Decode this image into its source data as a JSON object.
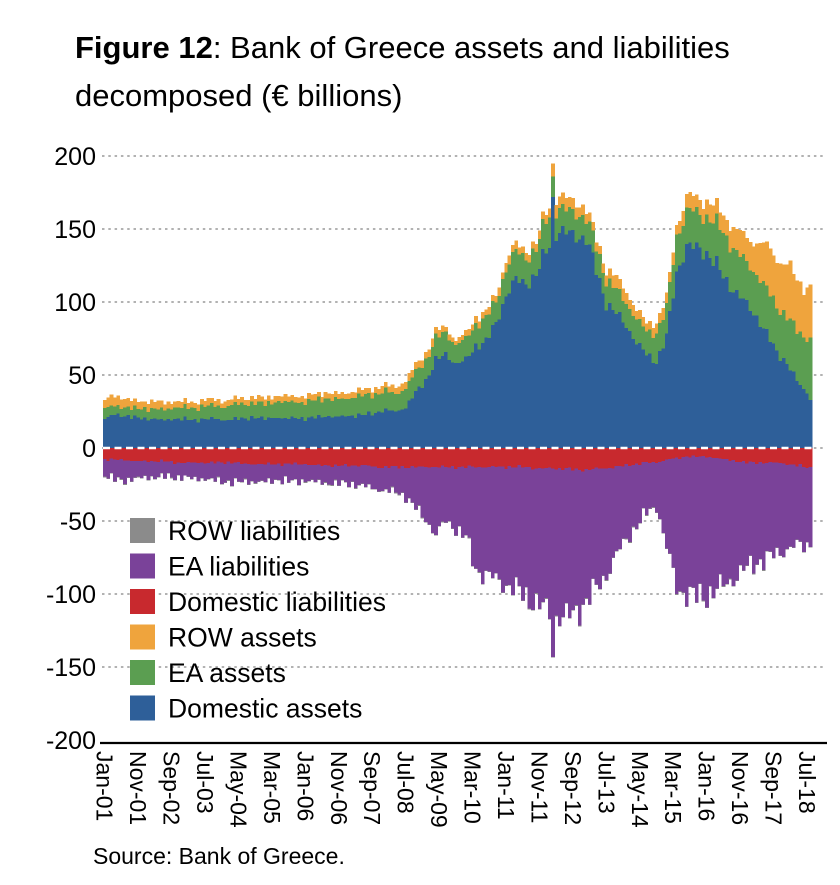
{
  "figure": {
    "title_bold": "Figure 12",
    "title_rest": ": Bank of Greece assets and liabilities decomposed (€ billions)",
    "source": "Source: Bank of Greece."
  },
  "chart_data": {
    "type": "bar",
    "stacked": true,
    "title": "Bank of Greece assets and liabilities decomposed (€ billions)",
    "unit": "€ billions",
    "ylim": [
      -200,
      200
    ],
    "yticks": [
      200,
      150,
      100,
      50,
      0,
      -50,
      -100,
      -150,
      -200
    ],
    "grid": "dotted",
    "zero_line": "white-dashed",
    "legend_position": "inside-lower-left",
    "x_start_label": "Jan-01",
    "x_end_label": "Aug-18",
    "months_total": 212,
    "xticks": [
      {
        "label": "Jan-01",
        "month": 0
      },
      {
        "label": "Nov-01",
        "month": 10
      },
      {
        "label": "Sep-02",
        "month": 20
      },
      {
        "label": "Jul-03",
        "month": 30
      },
      {
        "label": "May-04",
        "month": 40
      },
      {
        "label": "Mar-05",
        "month": 50
      },
      {
        "label": "Jan-06",
        "month": 60
      },
      {
        "label": "Nov-06",
        "month": 70
      },
      {
        "label": "Sep-07",
        "month": 80
      },
      {
        "label": "Jul-08",
        "month": 90
      },
      {
        "label": "May-09",
        "month": 100
      },
      {
        "label": "Mar-10",
        "month": 110
      },
      {
        "label": "Jan-11",
        "month": 120
      },
      {
        "label": "Nov-11",
        "month": 130
      },
      {
        "label": "Sep-12",
        "month": 140
      },
      {
        "label": "Jul-13",
        "month": 150
      },
      {
        "label": "May-14",
        "month": 160
      },
      {
        "label": "Mar-15",
        "month": 170
      },
      {
        "label": "Jan-16",
        "month": 180
      },
      {
        "label": "Nov-16",
        "month": 190
      },
      {
        "label": "Sep-17",
        "month": 200
      },
      {
        "label": "Jul-18",
        "month": 210
      }
    ],
    "quarterly_dates": [
      "Jan-01",
      "Apr-01",
      "Jul-01",
      "Oct-01",
      "Jan-02",
      "Apr-02",
      "Jul-02",
      "Oct-02",
      "Jan-03",
      "Apr-03",
      "Jul-03",
      "Oct-03",
      "Jan-04",
      "Apr-04",
      "Jul-04",
      "Oct-04",
      "Jan-05",
      "Apr-05",
      "Jul-05",
      "Oct-05",
      "Jan-06",
      "Apr-06",
      "Jul-06",
      "Oct-06",
      "Jan-07",
      "Apr-07",
      "Jul-07",
      "Oct-07",
      "Jan-08",
      "Apr-08",
      "Jul-08",
      "Oct-08",
      "Jan-09",
      "Apr-09",
      "Jul-09",
      "Oct-09",
      "Jan-10",
      "Apr-10",
      "Jul-10",
      "Oct-10",
      "Jan-11",
      "Apr-11",
      "Jul-11",
      "Oct-11",
      "Jan-12",
      "Apr-12",
      "Jul-12",
      "Oct-12",
      "Jan-13",
      "Apr-13",
      "Jul-13",
      "Oct-13",
      "Jan-14",
      "Apr-14",
      "Jul-14",
      "Oct-14",
      "Jan-15",
      "Apr-15",
      "Jul-15",
      "Oct-15",
      "Jan-16",
      "Apr-16",
      "Jul-16",
      "Oct-16",
      "Jan-17",
      "Apr-17",
      "Jul-17",
      "Oct-17",
      "Jan-18",
      "Apr-18",
      "Jul-18",
      "Oct-18"
    ],
    "series": [
      {
        "name": "Domestic assets",
        "color": "#2e5f99",
        "quarterly_values": [
          20,
          23,
          22,
          21,
          20,
          20,
          19,
          20,
          20,
          19,
          20,
          20,
          19,
          20,
          20,
          21,
          20,
          21,
          20,
          21,
          20,
          21,
          22,
          21,
          22,
          22,
          23,
          24,
          26,
          25,
          28,
          38,
          46,
          60,
          64,
          58,
          60,
          70,
          73,
          85,
          105,
          115,
          113,
          118,
          135,
          148,
          147,
          146,
          143,
          122,
          99,
          92,
          84,
          72,
          64,
          59,
          76,
          120,
          138,
          137,
          134,
          125,
          114,
          106,
          98,
          90,
          78,
          66,
          58,
          46,
          38,
          26
        ]
      },
      {
        "name": "EA assets",
        "color": "#5b9e51",
        "quarterly_values": [
          7,
          6,
          6,
          6,
          7,
          7,
          7,
          8,
          8,
          8,
          9,
          9,
          9,
          10,
          10,
          10,
          10,
          11,
          11,
          11,
          11,
          12,
          12,
          12,
          12,
          13,
          13,
          13,
          13,
          12,
          13,
          14,
          14,
          15,
          15,
          13,
          14,
          15,
          16,
          15,
          18,
          19,
          18,
          17,
          22,
          16,
          15,
          16,
          14,
          16,
          16,
          16,
          16,
          16,
          16,
          20,
          19,
          25,
          24,
          24,
          25,
          28,
          30,
          28,
          28,
          30,
          30,
          32,
          32,
          34,
          38,
          46
        ]
      },
      {
        "name": "ROW assets",
        "color": "#efa43d",
        "quarterly_values": [
          6,
          7,
          6,
          5,
          5,
          5,
          5,
          4,
          4,
          4,
          4,
          4,
          4,
          4,
          4,
          4,
          4,
          4,
          4,
          4,
          4,
          4,
          4,
          4,
          4,
          4,
          4,
          4,
          4,
          5,
          5,
          5,
          5,
          5,
          4,
          3,
          4,
          5,
          4,
          5,
          6,
          5,
          5,
          5,
          6,
          8,
          8,
          8,
          6,
          6,
          7,
          8,
          8,
          6,
          6,
          7,
          7,
          8,
          10,
          10,
          11,
          11,
          13,
          15,
          17,
          22,
          29,
          33,
          35,
          35,
          35,
          34
        ]
      },
      {
        "name": "Domestic liabilities",
        "color": "#c8292e",
        "quarterly_values": [
          -8,
          -8,
          -8,
          -9,
          -9,
          -9,
          -9,
          -10,
          -10,
          -10,
          -10,
          -10,
          -10,
          -10,
          -11,
          -11,
          -11,
          -11,
          -11,
          -11,
          -11,
          -12,
          -12,
          -12,
          -12,
          -12,
          -12,
          -13,
          -13,
          -13,
          -13,
          -13,
          -13,
          -13,
          -13,
          -13,
          -13,
          -13,
          -13,
          -13,
          -13,
          -13,
          -13,
          -14,
          -14,
          -14,
          -14,
          -15,
          -15,
          -14,
          -14,
          -13,
          -12,
          -11,
          -10,
          -10,
          -8,
          -7,
          -6,
          -6,
          -6,
          -7,
          -8,
          -9,
          -10,
          -10,
          -10,
          -10,
          -11,
          -12,
          -13,
          -15
        ]
      },
      {
        "name": "EA liabilities",
        "color": "#7a4299",
        "quarterly_values": [
          -11,
          -13,
          -14,
          -12,
          -11,
          -11,
          -10,
          -10,
          -10,
          -11,
          -11,
          -12,
          -13,
          -13,
          -12,
          -12,
          -12,
          -11,
          -11,
          -12,
          -11,
          -11,
          -12,
          -12,
          -12,
          -13,
          -14,
          -15,
          -16,
          -17,
          -20,
          -28,
          -36,
          -46,
          -37,
          -42,
          -48,
          -70,
          -74,
          -77,
          -80,
          -84,
          -88,
          -92,
          -97,
          -101,
          -102,
          -97,
          -90,
          -82,
          -72,
          -60,
          -50,
          -42,
          -34,
          -30,
          -60,
          -88,
          -94,
          -96,
          -94,
          -90,
          -84,
          -78,
          -72,
          -68,
          -66,
          -62,
          -58,
          -55,
          -53,
          -48
        ]
      },
      {
        "name": "ROW liabilities",
        "color": "#8b8b8b",
        "quarterly_values": [
          -0.4,
          -0.4,
          -0.4,
          -0.4,
          -0.4,
          -0.4,
          -0.4,
          -0.4,
          -0.4,
          -0.4,
          -0.4,
          -0.4,
          -0.4,
          -0.4,
          -0.4,
          -0.4,
          -0.4,
          -0.4,
          -0.4,
          -0.4,
          -0.4,
          -0.4,
          -0.4,
          -0.4,
          -0.4,
          -0.4,
          -0.4,
          -0.4,
          -0.4,
          -0.4,
          -0.4,
          -0.4,
          -0.4,
          -0.4,
          -0.4,
          -0.4,
          -0.4,
          -0.4,
          -0.4,
          -0.4,
          -0.4,
          -0.4,
          -0.4,
          -0.4,
          -0.4,
          -0.4,
          -0.4,
          -0.4,
          -0.4,
          -0.4,
          -0.4,
          -0.4,
          -0.4,
          -0.4,
          -0.4,
          -0.4,
          -0.4,
          -0.4,
          -0.4,
          -0.4,
          -0.4,
          -0.4,
          -0.4,
          -0.4,
          -0.4,
          -0.4,
          -0.4,
          -0.4,
          -0.4,
          -0.4,
          -0.4,
          -0.4
        ]
      }
    ],
    "legend_order": [
      "ROW liabilities",
      "EA liabilities",
      "Domestic liabilities",
      "ROW assets",
      "EA assets",
      "Domestic assets"
    ],
    "spike": {
      "date": "Mar-12",
      "month_index": 134,
      "values": {
        "Domestic assets": 172,
        "EA assets": 14,
        "ROW assets": 9,
        "Domestic liabilities": -14,
        "EA liabilities": -129,
        "ROW liabilities": -0.5
      }
    }
  }
}
